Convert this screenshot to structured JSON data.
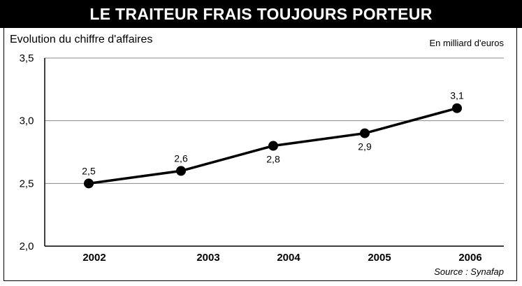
{
  "header": {
    "title": "LE TRAITEUR FRAIS TOUJOURS PORTEUR"
  },
  "chart_data": {
    "type": "line",
    "title": "LE TRAITEUR FRAIS TOUJOURS PORTEUR",
    "subtitle": "Evolution du chiffre d'affaires",
    "unit": "En milliard d'euros",
    "source": "Source : Synafap",
    "x": [
      "2002",
      "2003",
      "2004",
      "2005",
      "2006"
    ],
    "series": [
      {
        "values": [
          2.5,
          2.6,
          2.8,
          2.9,
          3.1
        ],
        "labels": [
          "2,5",
          "2,6",
          "2,8",
          "2,9",
          "3,1"
        ]
      }
    ],
    "ylim": [
      2.0,
      3.5
    ],
    "yticks": [
      2.0,
      2.5,
      3.0,
      3.5
    ],
    "ytick_labels": [
      "2,0",
      "2,5",
      "3,0",
      "3,5"
    ],
    "grid": true,
    "colors": {
      "line": "#000000",
      "grid": "#888888"
    }
  }
}
